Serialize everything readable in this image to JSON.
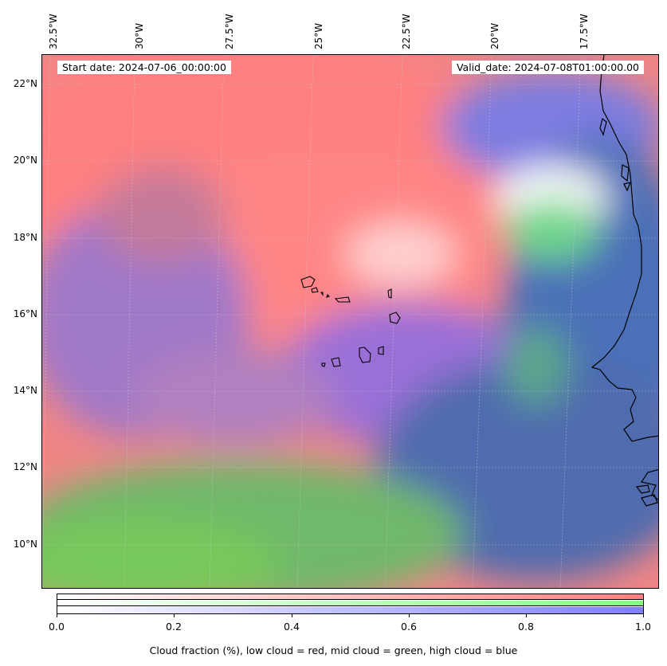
{
  "map": {
    "start_date": "Start date: 2024-07-06_00:00:00",
    "valid_date": "Valid_date: 2024-07-08T01:00:00.00",
    "lon_labels": [
      "32.5°W",
      "30°W",
      "27.5°W",
      "25°W",
      "22.5°W",
      "20°W",
      "17.5°W"
    ],
    "lat_labels": [
      "22°N",
      "20°N",
      "18°N",
      "16°N",
      "14°N",
      "12°N",
      "10°N"
    ],
    "colors": {
      "low_cloud": "#ff7f7f",
      "mid_cloud": "#7fd66a",
      "high_cloud": "#6f70e0",
      "ocean_mix": "#4f6fae"
    }
  },
  "colorbar": {
    "tick_labels": [
      "0.0",
      "0.2",
      "0.4",
      "0.6",
      "0.8",
      "1.0"
    ],
    "caption": "Cloud fraction (%), low cloud = red, mid cloud = green, high cloud = blue"
  }
}
